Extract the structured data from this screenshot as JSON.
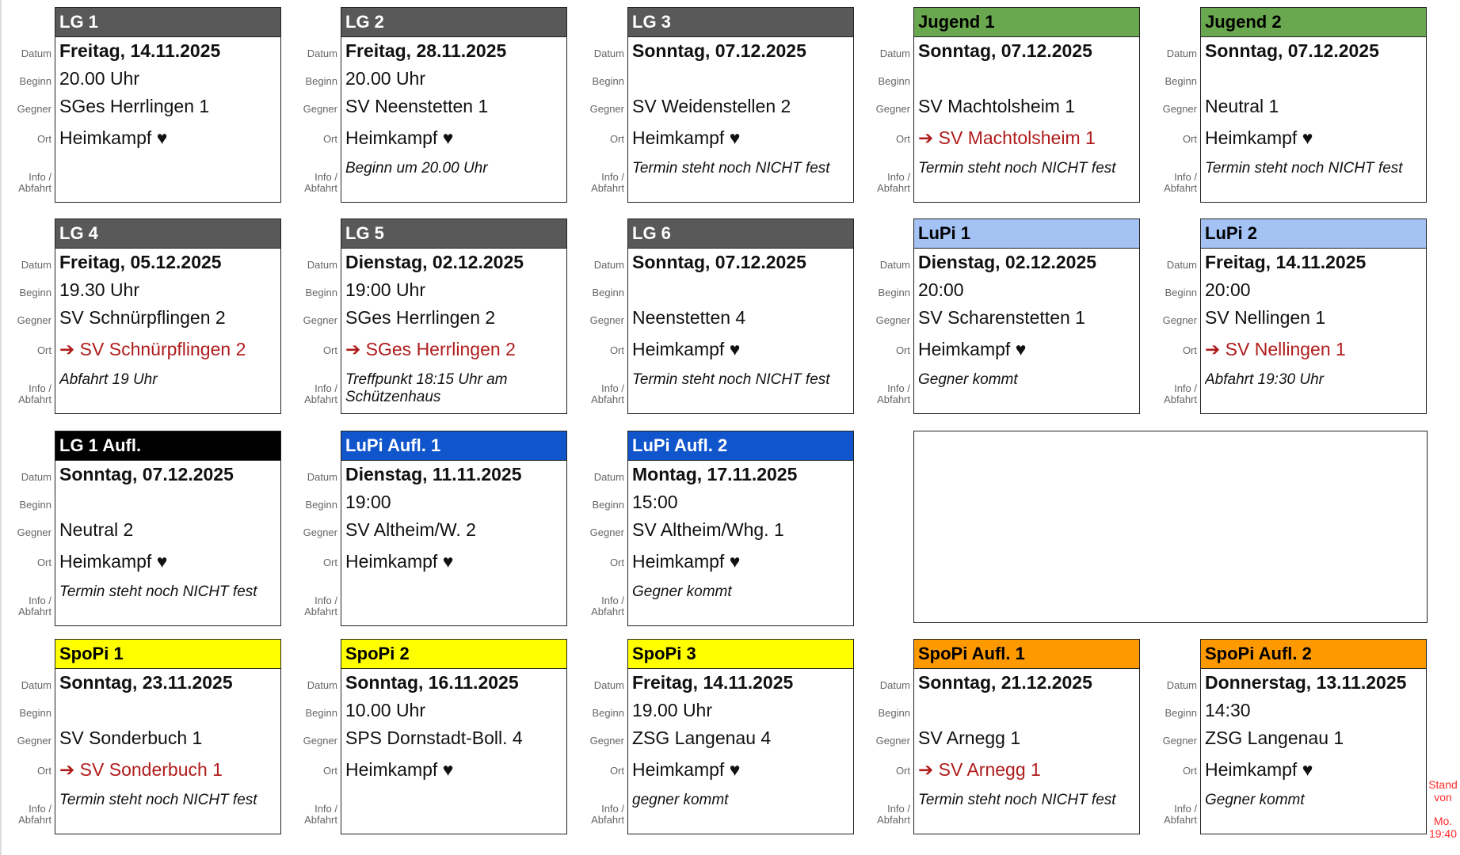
{
  "row_labels": {
    "date": "Datum",
    "begin": "Beginn",
    "opponent": "Gegner",
    "location": "Ort",
    "info": "Info / Abfahrt"
  },
  "cards": [
    {
      "title": "LG 1",
      "header_color": "#595959",
      "header_text": "#ffffff",
      "date": "Freitag, 14.11.2025",
      "begin": "20.00 Uhr",
      "opponent": "SGes Herrlingen 1",
      "location": "Heimkampf ♥",
      "away": false,
      "info": ""
    },
    {
      "title": "LG 2",
      "header_color": "#595959",
      "header_text": "#ffffff",
      "date": "Freitag, 28.11.2025",
      "begin": "20.00 Uhr",
      "opponent": "SV Neenstetten 1",
      "location": "Heimkampf ♥",
      "away": false,
      "info": "Beginn um 20.00 Uhr"
    },
    {
      "title": "LG 3",
      "header_color": "#595959",
      "header_text": "#ffffff",
      "date": "Sonntag, 07.12.2025",
      "begin": "",
      "opponent": "SV Weidenstellen 2",
      "location": "Heimkampf ♥",
      "away": false,
      "info": "Termin steht noch NICHT fest"
    },
    {
      "title": "Jugend 1",
      "header_color": "#6aa84f",
      "header_text": "#000000",
      "date": "Sonntag, 07.12.2025",
      "begin": "",
      "opponent": "SV Machtolsheim 1",
      "location": "➔ SV Machtolsheim 1",
      "away": true,
      "info": "Termin steht noch NICHT fest"
    },
    {
      "title": "Jugend 2",
      "header_color": "#6aa84f",
      "header_text": "#000000",
      "date": "Sonntag, 07.12.2025",
      "begin": "",
      "opponent": "Neutral 1",
      "location": "Heimkampf ♥",
      "away": false,
      "info": "Termin steht noch NICHT fest"
    },
    {
      "title": "LG 4",
      "header_color": "#595959",
      "header_text": "#ffffff",
      "date": "Freitag, 05.12.2025",
      "begin": "19.30 Uhr",
      "opponent": "SV Schnürpflingen 2",
      "location": "➔ SV Schnürpflingen 2",
      "away": true,
      "info": "Abfahrt 19 Uhr"
    },
    {
      "title": "LG 5",
      "header_color": "#595959",
      "header_text": "#ffffff",
      "date": "Dienstag, 02.12.2025",
      "begin": "19:00 Uhr",
      "opponent": "SGes Herrlingen 2",
      "location": "➔ SGes Herrlingen 2",
      "away": true,
      "info": "Treffpunkt 18:15 Uhr am Schützenhaus"
    },
    {
      "title": "LG 6",
      "header_color": "#595959",
      "header_text": "#ffffff",
      "date": "Sonntag, 07.12.2025",
      "begin": "",
      "opponent": "Neenstetten 4",
      "location": "Heimkampf ♥",
      "away": false,
      "info": "Termin steht noch NICHT fest"
    },
    {
      "title": "LuPi 1",
      "header_color": "#a4c2f4",
      "header_text": "#000000",
      "date": "Dienstag, 02.12.2025",
      "begin": "20:00",
      "opponent": "SV Scharenstetten 1",
      "location": "Heimkampf ♥",
      "away": false,
      "info": "Gegner kommt"
    },
    {
      "title": "LuPi 2",
      "header_color": "#a4c2f4",
      "header_text": "#000000",
      "date": "Freitag, 14.11.2025",
      "begin": "20:00",
      "opponent": "SV Nellingen 1",
      "location": "➔ SV Nellingen 1",
      "away": true,
      "info": "Abfahrt 19:30 Uhr"
    },
    {
      "title": "LG 1 Aufl.",
      "header_color": "#000000",
      "header_text": "#ffffff",
      "date": "Sonntag, 07.12.2025",
      "begin": "",
      "opponent": "Neutral 2",
      "location": "Heimkampf ♥",
      "away": false,
      "info": "Termin steht noch NICHT fest"
    },
    {
      "title": "LuPi Aufl. 1",
      "header_color": "#1155cc",
      "header_text": "#ffffff",
      "date": "Dienstag, 11.11.2025",
      "begin": "19:00",
      "opponent": "SV Altheim/W. 2",
      "location": "Heimkampf ♥",
      "away": false,
      "info": ""
    },
    {
      "title": "LuPi Aufl. 2",
      "header_color": "#1155cc",
      "header_text": "#ffffff",
      "date": "Montag, 17.11.2025",
      "begin": "15:00",
      "opponent": "SV Altheim/Whg. 1",
      "location": "Heimkampf ♥",
      "away": false,
      "info": "Gegner kommt"
    },
    {
      "title": "SpoPi 1",
      "header_color": "#ffff00",
      "header_text": "#000000",
      "date": "Sonntag, 23.11.2025",
      "begin": "",
      "opponent": "SV Sonderbuch 1",
      "location": "➔ SV Sonderbuch 1",
      "away": true,
      "info": "Termin steht noch NICHT fest"
    },
    {
      "title": "SpoPi 2",
      "header_color": "#ffff00",
      "header_text": "#000000",
      "date": "Sonntag, 16.11.2025",
      "begin": "10.00 Uhr",
      "opponent": "SPS Dornstadt-Boll. 4",
      "location": "Heimkampf ♥",
      "away": false,
      "info": ""
    },
    {
      "title": "SpoPi 3",
      "header_color": "#ffff00",
      "header_text": "#000000",
      "date": "Freitag, 14.11.2025",
      "begin": "19.00 Uhr",
      "opponent": "ZSG Langenau 4",
      "location": "Heimkampf ♥",
      "away": false,
      "info": "gegner kommt"
    },
    {
      "title": "SpoPi Aufl. 1",
      "header_color": "#ff9900",
      "header_text": "#000000",
      "date": "Sonntag, 21.12.2025",
      "begin": "",
      "opponent": "SV Arnegg 1",
      "location": "➔ SV Arnegg 1",
      "away": true,
      "info": "Termin steht noch NICHT fest"
    },
    {
      "title": "SpoPi Aufl. 2",
      "header_color": "#ff9900",
      "header_text": "#000000",
      "date": "Donnerstag, 13.11.2025",
      "begin": "14:30",
      "opponent": "ZSG Langenau 1",
      "location": "Heimkampf ♥",
      "away": false,
      "info": "Gegner kommt"
    }
  ],
  "status": {
    "line1": "Stand",
    "line2": "von",
    "line3": "Mo.",
    "line4": "19:40",
    "color": "#ff2a2a"
  }
}
